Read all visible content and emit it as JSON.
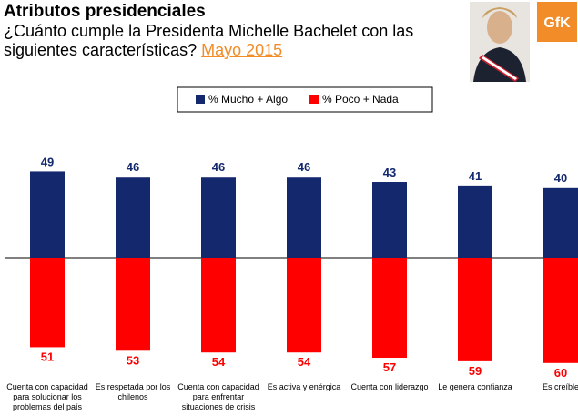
{
  "chart_data": {
    "type": "bar",
    "title": "Atributos presidenciales",
    "subtitle": "¿Cuánto cumple la Presidenta Michelle Bachelet con las siguientes características?",
    "date_label": "Mayo 2015",
    "logo": "GfK",
    "categories": [
      "Cuenta con capacidad para solucionar los problemas del país",
      "Es respetada por los chilenos",
      "Cuenta con capacidad para enfrentar situaciones de crisis",
      "Es activa y enérgica",
      "Cuenta con liderazgo",
      "Le genera confianza",
      "Es creíble"
    ],
    "series": [
      {
        "name": "% Mucho + Algo",
        "color": "#14286e",
        "values": [
          49,
          46,
          46,
          46,
          43,
          41,
          40
        ]
      },
      {
        "name": "% Poco + Nada",
        "color": "#ff0000",
        "values": [
          51,
          53,
          54,
          54,
          57,
          59,
          60
        ]
      }
    ]
  }
}
